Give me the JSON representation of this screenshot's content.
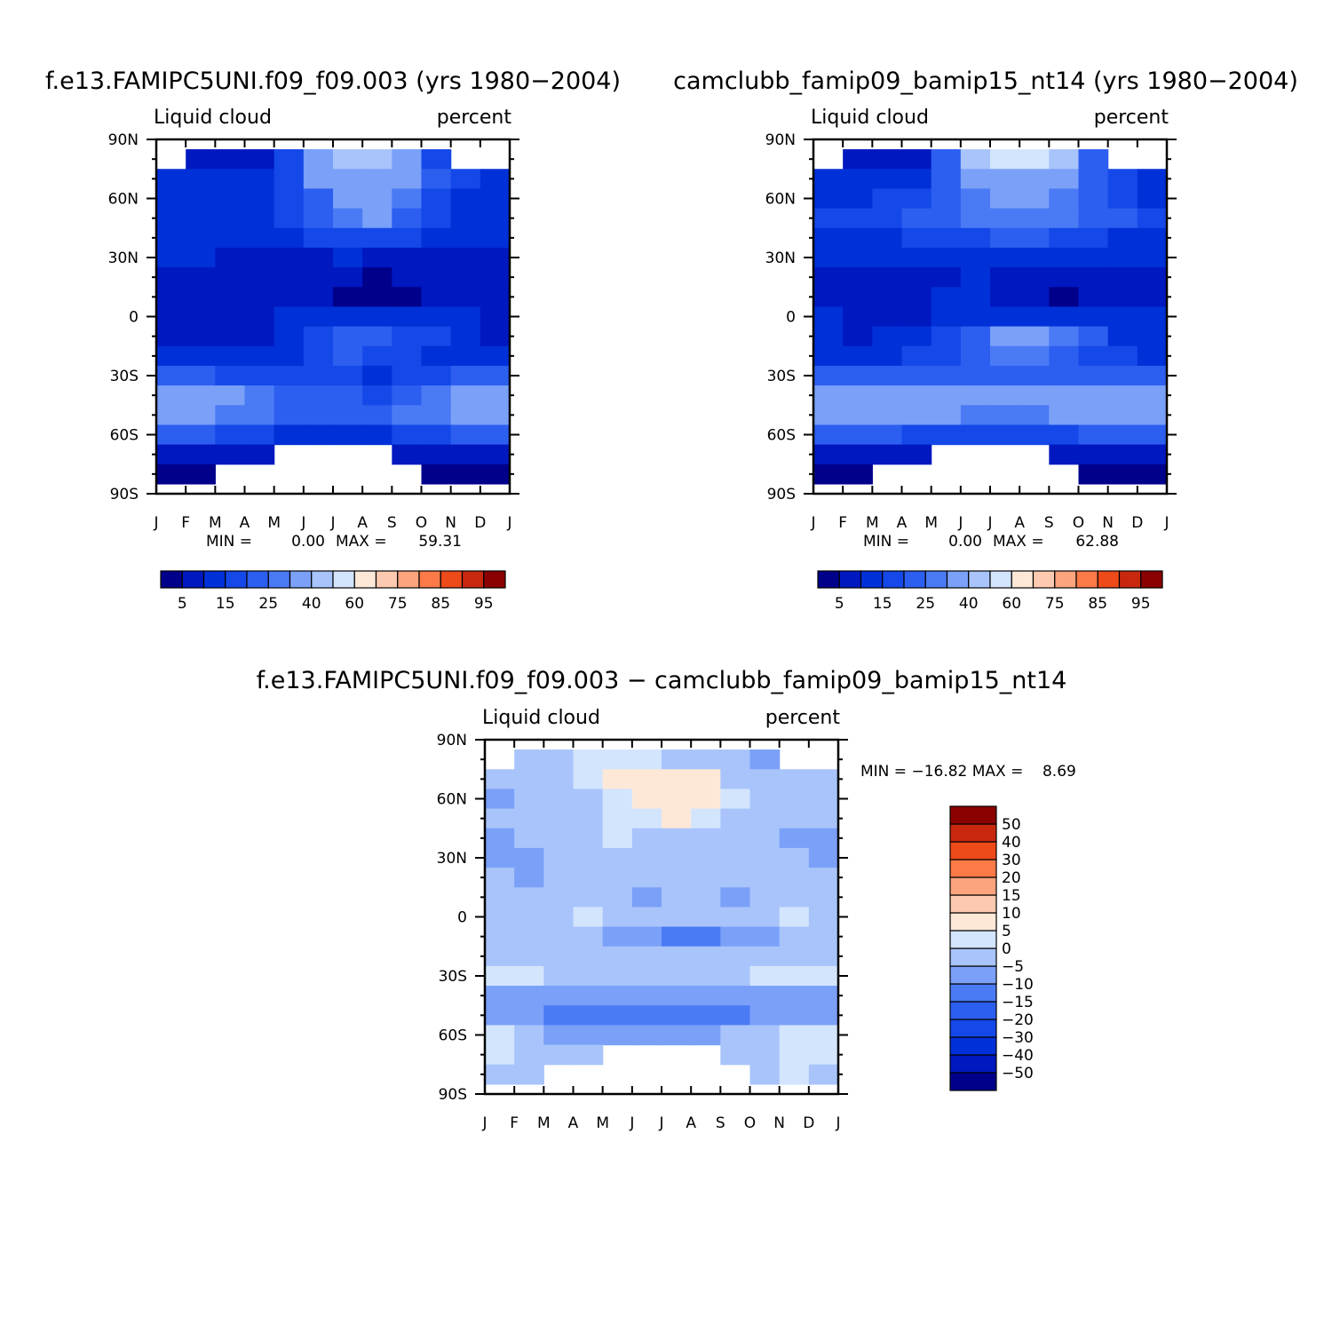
{
  "panels": [
    {
      "id": "p1",
      "title": "f.e13.FAMIPC5UNI.f09_f09.003 (yrs 1980−2004)",
      "subtitle_left": "Liquid cloud",
      "subtitle_right": "percent",
      "min_label": "MIN =",
      "min_value": "0.00",
      "max_label": "MAX =",
      "max_value": "59.31"
    },
    {
      "id": "p2",
      "title": "camclubb_famip09_bamip15_nt14 (yrs 1980−2004)",
      "subtitle_left": "Liquid cloud",
      "subtitle_right": "percent",
      "min_label": "MIN =",
      "min_value": "0.00",
      "max_label": "MAX =",
      "max_value": "62.88"
    },
    {
      "id": "p3",
      "title": "f.e13.FAMIPC5UNI.f09_f09.003 − camclubb_famip09_bamip15_nt14",
      "subtitle_left": "Liquid cloud",
      "subtitle_right": "percent",
      "stat_text": "MIN = −16.82 MAX =    8.69"
    }
  ],
  "chart_data": [
    {
      "type": "heatmap",
      "panel": "p1",
      "title": "f.e13.FAMIPC5UNI.f09_f09.003 (yrs 1980−2004)",
      "subtitle": "Liquid cloud",
      "units": "percent",
      "x_ticks": [
        "J",
        "F",
        "M",
        "A",
        "M",
        "J",
        "J",
        "A",
        "S",
        "O",
        "N",
        "D",
        "J"
      ],
      "y_ticks": [
        "90N",
        "60N",
        "30N",
        "0",
        "30S",
        "60S",
        "90S"
      ],
      "ylim": [
        -90,
        90
      ],
      "x_categories": [
        "Jan",
        "Feb",
        "Mar",
        "Apr",
        "May",
        "Jun",
        "Jul",
        "Aug",
        "Sep",
        "Oct",
        "Nov",
        "Dec"
      ],
      "lat": [
        80,
        70,
        60,
        50,
        40,
        30,
        20,
        10,
        0,
        -10,
        -20,
        -30,
        -40,
        -50,
        -60,
        -70,
        -80
      ],
      "values": [
        [
          null,
          5,
          5,
          5,
          15,
          30,
          45,
          45,
          30,
          15,
          null,
          null
        ],
        [
          10,
          10,
          10,
          12,
          18,
          30,
          35,
          35,
          30,
          20,
          15,
          10
        ],
        [
          12,
          12,
          12,
          13,
          15,
          22,
          30,
          33,
          28,
          18,
          14,
          12
        ],
        [
          12,
          12,
          12,
          14,
          15,
          20,
          28,
          30,
          24,
          16,
          14,
          12
        ],
        [
          12,
          12,
          12,
          12,
          14,
          16,
          18,
          18,
          16,
          14,
          12,
          12
        ],
        [
          10,
          10,
          8,
          8,
          9,
          9,
          10,
          9,
          8,
          8,
          8,
          8
        ],
        [
          6,
          5,
          5,
          5,
          6,
          6,
          5,
          4,
          5,
          6,
          6,
          6
        ],
        [
          6,
          6,
          6,
          6,
          5,
          5,
          4,
          3,
          4,
          5,
          6,
          6
        ],
        [
          8,
          8,
          8,
          9,
          10,
          12,
          14,
          14,
          14,
          12,
          10,
          8
        ],
        [
          8,
          6,
          7,
          8,
          12,
          16,
          20,
          20,
          18,
          15,
          12,
          8
        ],
        [
          10,
          10,
          10,
          12,
          14,
          18,
          20,
          18,
          16,
          14,
          14,
          10
        ],
        [
          20,
          20,
          18,
          16,
          15,
          16,
          16,
          14,
          15,
          18,
          20,
          22
        ],
        [
          30,
          32,
          30,
          26,
          24,
          22,
          20,
          18,
          22,
          28,
          32,
          32
        ],
        [
          30,
          30,
          28,
          26,
          24,
          22,
          20,
          22,
          26,
          28,
          32,
          34
        ],
        [
          20,
          20,
          18,
          16,
          14,
          14,
          14,
          14,
          16,
          18,
          22,
          22
        ],
        [
          5,
          5,
          5,
          5,
          null,
          null,
          null,
          null,
          5,
          5,
          5,
          5
        ],
        [
          3,
          3,
          null,
          null,
          null,
          null,
          null,
          null,
          null,
          3,
          3,
          3
        ]
      ],
      "colorbar": {
        "levels": [
          5,
          10,
          15,
          20,
          25,
          30,
          40,
          50,
          60,
          65,
          75,
          80,
          85,
          90,
          95
        ],
        "tick_labels": [
          "5",
          "15",
          "25",
          "40",
          "60",
          "75",
          "85",
          "95"
        ]
      },
      "min": 0.0,
      "max": 59.31
    },
    {
      "type": "heatmap",
      "panel": "p2",
      "title": "camclubb_famip09_bamip15_nt14 (yrs 1980−2004)",
      "subtitle": "Liquid cloud",
      "units": "percent",
      "x_ticks": [
        "J",
        "F",
        "M",
        "A",
        "M",
        "J",
        "J",
        "A",
        "S",
        "O",
        "N",
        "D",
        "J"
      ],
      "y_ticks": [
        "90N",
        "60N",
        "30N",
        "0",
        "30S",
        "60S",
        "90S"
      ],
      "ylim": [
        -90,
        90
      ],
      "x_categories": [
        "Jan",
        "Feb",
        "Mar",
        "Apr",
        "May",
        "Jun",
        "Jul",
        "Aug",
        "Sep",
        "Oct",
        "Nov",
        "Dec"
      ],
      "lat": [
        80,
        70,
        60,
        50,
        40,
        30,
        20,
        10,
        0,
        -10,
        -20,
        -30,
        -40,
        -50,
        -60,
        -70,
        -80
      ],
      "values": [
        [
          null,
          5,
          5,
          8,
          20,
          45,
          55,
          55,
          40,
          20,
          null,
          null
        ],
        [
          10,
          10,
          12,
          14,
          22,
          32,
          38,
          36,
          32,
          22,
          15,
          10
        ],
        [
          14,
          14,
          16,
          18,
          20,
          26,
          30,
          30,
          28,
          22,
          18,
          14
        ],
        [
          16,
          18,
          18,
          20,
          22,
          26,
          28,
          28,
          26,
          22,
          20,
          16
        ],
        [
          14,
          14,
          14,
          15,
          16,
          18,
          20,
          20,
          18,
          16,
          14,
          14
        ],
        [
          10,
          10,
          10,
          10,
          12,
          12,
          12,
          10,
          10,
          12,
          12,
          12
        ],
        [
          8,
          8,
          8,
          8,
          8,
          10,
          8,
          6,
          6,
          8,
          8,
          8
        ],
        [
          8,
          8,
          8,
          8,
          10,
          10,
          8,
          6,
          4,
          6,
          8,
          8
        ],
        [
          10,
          6,
          6,
          8,
          10,
          12,
          14,
          14,
          14,
          12,
          10,
          10
        ],
        [
          10,
          8,
          10,
          12,
          16,
          22,
          30,
          32,
          28,
          20,
          14,
          10
        ],
        [
          12,
          14,
          14,
          16,
          18,
          22,
          26,
          26,
          22,
          18,
          16,
          14
        ],
        [
          20,
          22,
          22,
          22,
          22,
          22,
          22,
          22,
          22,
          22,
          22,
          22
        ],
        [
          35,
          36,
          35,
          34,
          32,
          30,
          30,
          30,
          32,
          34,
          36,
          36
        ],
        [
          35,
          36,
          34,
          32,
          30,
          28,
          28,
          28,
          30,
          32,
          36,
          38
        ],
        [
          22,
          22,
          20,
          18,
          18,
          18,
          18,
          18,
          18,
          20,
          22,
          22
        ],
        [
          5,
          5,
          5,
          5,
          null,
          null,
          null,
          null,
          5,
          5,
          5,
          5
        ],
        [
          3,
          3,
          null,
          null,
          null,
          null,
          null,
          null,
          null,
          3,
          3,
          3
        ]
      ],
      "colorbar": {
        "levels": [
          5,
          10,
          15,
          20,
          25,
          30,
          40,
          50,
          60,
          65,
          75,
          80,
          85,
          90,
          95
        ],
        "tick_labels": [
          "5",
          "15",
          "25",
          "40",
          "60",
          "75",
          "85",
          "95"
        ]
      },
      "min": 0.0,
      "max": 62.88
    },
    {
      "type": "heatmap",
      "panel": "p3",
      "title": "f.e13.FAMIPC5UNI.f09_f09.003 − camclubb_famip09_bamip15_nt14",
      "subtitle": "Liquid cloud",
      "units": "percent",
      "x_ticks": [
        "J",
        "F",
        "M",
        "A",
        "M",
        "J",
        "J",
        "A",
        "S",
        "O",
        "N",
        "D",
        "J"
      ],
      "y_ticks": [
        "90N",
        "60N",
        "30N",
        "0",
        "30S",
        "60S",
        "90S"
      ],
      "ylim": [
        -90,
        90
      ],
      "x_categories": [
        "Jan",
        "Feb",
        "Mar",
        "Apr",
        "May",
        "Jun",
        "Jul",
        "Aug",
        "Sep",
        "Oct",
        "Nov",
        "Dec"
      ],
      "lat": [
        80,
        70,
        60,
        50,
        40,
        30,
        20,
        10,
        0,
        -10,
        -20,
        -30,
        -40,
        -50,
        -60,
        -70,
        -80
      ],
      "values": [
        [
          null,
          -2,
          -2,
          3,
          4,
          3,
          -2,
          -3,
          -4,
          -6,
          null,
          null
        ],
        [
          -3,
          -3,
          -2,
          3,
          6,
          7,
          8,
          6,
          -2,
          -3,
          -3,
          -3
        ],
        [
          -6,
          -4,
          -3,
          -2,
          3,
          6,
          8,
          8,
          3,
          -3,
          -4,
          -4
        ],
        [
          -3,
          -4,
          -3,
          -2,
          3,
          3,
          6,
          3,
          -2,
          -3,
          -4,
          -5
        ],
        [
          -6,
          -4,
          -3,
          -2,
          2,
          -2,
          -2,
          -2,
          -3,
          -3,
          -6,
          -6
        ],
        [
          -6,
          -6,
          -3,
          -2,
          -2,
          -2,
          -2,
          -2,
          -2,
          -2,
          -3,
          -6
        ],
        [
          -3,
          -6,
          -3,
          -2,
          -2,
          -2,
          -2,
          -3,
          -3,
          -2,
          -2,
          -3
        ],
        [
          -2,
          -2,
          -2,
          -2,
          -2,
          -6,
          -3,
          -3,
          -6,
          -2,
          -2,
          -2
        ],
        [
          -2,
          -2,
          -2,
          3,
          -2,
          -2,
          -2,
          -3,
          -2,
          -2,
          3,
          -2
        ],
        [
          -2,
          -2,
          -2,
          -2,
          -6,
          -6,
          -12,
          -12,
          -8,
          -6,
          -2,
          -2
        ],
        [
          -2,
          -2,
          -2,
          -2,
          -2,
          -2,
          -3,
          -3,
          -2,
          -2,
          -2,
          -2
        ],
        [
          2,
          3,
          -2,
          -2,
          -2,
          -2,
          -2,
          -2,
          -2,
          3,
          3,
          3
        ],
        [
          -6,
          -6,
          -6,
          -6,
          -6,
          -6,
          -6,
          -6,
          -6,
          -6,
          -6,
          -6
        ],
        [
          -6,
          -6,
          -12,
          -12,
          -12,
          -12,
          -12,
          -12,
          -12,
          -6,
          -6,
          -6
        ],
        [
          3,
          -2,
          -6,
          -6,
          -6,
          -6,
          -6,
          -6,
          -2,
          -2,
          3,
          3
        ],
        [
          3,
          -2,
          -2,
          -2,
          null,
          null,
          null,
          null,
          -2,
          -2,
          3,
          3
        ],
        [
          -2,
          -2,
          null,
          null,
          null,
          null,
          null,
          null,
          null,
          -2,
          2,
          -2
        ]
      ],
      "colorbar": {
        "levels": [
          -50,
          -40,
          -30,
          -20,
          -15,
          -10,
          -5,
          0,
          5,
          10,
          15,
          20,
          30,
          40,
          50
        ],
        "tick_labels": [
          "50",
          "40",
          "30",
          "20",
          "15",
          "10",
          "5",
          "0",
          "−5",
          "−10",
          "−15",
          "−20",
          "−30",
          "−40",
          "−50"
        ]
      },
      "min": -16.82,
      "max": 8.69
    }
  ],
  "colors": {
    "palette": [
      "#00008b",
      "#0018c0",
      "#0030d8",
      "#1448e8",
      "#2c5ef0",
      "#4a7bf5",
      "#7aa0f8",
      "#a8c4fb",
      "#d3e5fd",
      "#fde8d7",
      "#fccab0",
      "#fca47e",
      "#fb7a48",
      "#ee4a1a",
      "#c8280e",
      "#8b0000"
    ]
  }
}
